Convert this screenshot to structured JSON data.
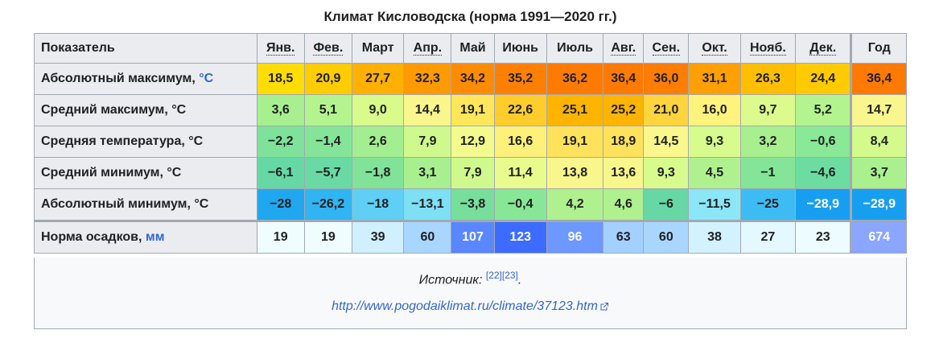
{
  "title": "Климат Кисловодска (норма 1991—2020 гг.)",
  "header": {
    "indicator": "Показатель",
    "months": [
      "Янв.",
      "Фев.",
      "Март",
      "Апр.",
      "Май",
      "Июнь",
      "Июль",
      "Авг.",
      "Сен.",
      "Окт.",
      "Нояб.",
      "Дек."
    ],
    "year": "Год"
  },
  "rows": [
    {
      "label": "Абсолютный максимум, ",
      "unit": "°C",
      "values": [
        "18,5",
        "20,9",
        "27,7",
        "32,3",
        "34,2",
        "35,2",
        "36,2",
        "36,4",
        "36,0",
        "31,1",
        "26,3",
        "24,4"
      ],
      "year": "36,4",
      "colors": [
        "#ffdd00",
        "#ffcc00",
        "#ffb000",
        "#ff9a00",
        "#ff8c00",
        "#ff8000",
        "#ff7b00",
        "#ff7a00",
        "#ff7d00",
        "#ff9f00",
        "#ffbf00",
        "#ffcb00"
      ],
      "year_color": "#ff7a00"
    },
    {
      "label": "Средний максимум, °C",
      "unit": "",
      "values": [
        "3,6",
        "5,1",
        "9,0",
        "14,4",
        "19,1",
        "22,6",
        "25,1",
        "25,2",
        "21,0",
        "16,0",
        "9,7",
        "5,2"
      ],
      "year": "14,7",
      "colors": [
        "#a8ef8f",
        "#b4f48f",
        "#d9fb8c",
        "#f8f68c",
        "#ffe65a",
        "#ffcd2b",
        "#ffb400",
        "#ffb400",
        "#ffd43d",
        "#fff27d",
        "#dcfb8c",
        "#b4f48f"
      ],
      "year_color": "#f8f68c"
    },
    {
      "label": "Средняя температура, °C",
      "unit": "",
      "values": [
        "−2,2",
        "−1,4",
        "2,6",
        "7,9",
        "12,9",
        "16,6",
        "19,1",
        "18,9",
        "14,5",
        "9,3",
        "3,2",
        "−0,6"
      ],
      "year": "8,4",
      "colors": [
        "#7ee29a",
        "#84e598",
        "#a2ee90",
        "#cff98c",
        "#f2fb8c",
        "#fff07a",
        "#ffe25c",
        "#ffe25c",
        "#fbf78b",
        "#d7fb8c",
        "#a7ef8f",
        "#8ae996"
      ],
      "year_color": "#d4fa8c"
    },
    {
      "label": "Средний минимум, °C",
      "unit": "",
      "values": [
        "−6,1",
        "−5,7",
        "−1,8",
        "3,1",
        "7,9",
        "11,4",
        "13,8",
        "13,6",
        "9,3",
        "4,5",
        "−1",
        "−4,6"
      ],
      "year": "3,7",
      "colors": [
        "#66d8a6",
        "#69daa4",
        "#80e398",
        "#a8ef8f",
        "#cff98c",
        "#e9fb8c",
        "#f8f68c",
        "#f7f78c",
        "#d7fb8c",
        "#b0f18f",
        "#84e598",
        "#6ddca1"
      ],
      "year_color": "#aaf08f"
    },
    {
      "label": "Абсолютный минимум, °C",
      "unit": "",
      "values": [
        "−28",
        "−26,2",
        "−18",
        "−13,1",
        "−3,8",
        "−0,4",
        "4,2",
        "4,6",
        "−6",
        "−11,5",
        "−25",
        "−28,9"
      ],
      "year": "−28,9",
      "colors": [
        "#1fa8f0",
        "#31b4f2",
        "#5fcff5",
        "#7ee0f5",
        "#77de9c",
        "#88e797",
        "#b0f18f",
        "#b0f18f",
        "#66d8a6",
        "#8be6f7",
        "#3cbcf3",
        "#189ef0"
      ],
      "year_color": "#189ef0",
      "white": [
        false,
        false,
        false,
        false,
        false,
        false,
        false,
        false,
        false,
        false,
        false,
        true
      ],
      "year_white": true
    }
  ],
  "precip": {
    "label": "Норма осадков, ",
    "unit": "мм",
    "values": [
      "19",
      "19",
      "39",
      "60",
      "107",
      "123",
      "96",
      "63",
      "60",
      "38",
      "27",
      "23"
    ],
    "year": "674",
    "colors": [
      "#f0fdff",
      "#f0fdff",
      "#d0f0ff",
      "#a9d6ff",
      "#5a86ff",
      "#3d6bff",
      "#6c98ff",
      "#a4d0ff",
      "#a9d6ff",
      "#d2f2ff",
      "#e4f8ff",
      "#ecfcff"
    ],
    "year_color": "#8aa6ff",
    "white": [
      false,
      false,
      false,
      false,
      true,
      true,
      true,
      false,
      false,
      false,
      false,
      false
    ]
  },
  "footer": {
    "source_label": "Источник: ",
    "refs": [
      "[22]",
      "[23]"
    ],
    "period": ".",
    "url": "http://www.pogodaiklimat.ru/climate/37123.htm"
  }
}
